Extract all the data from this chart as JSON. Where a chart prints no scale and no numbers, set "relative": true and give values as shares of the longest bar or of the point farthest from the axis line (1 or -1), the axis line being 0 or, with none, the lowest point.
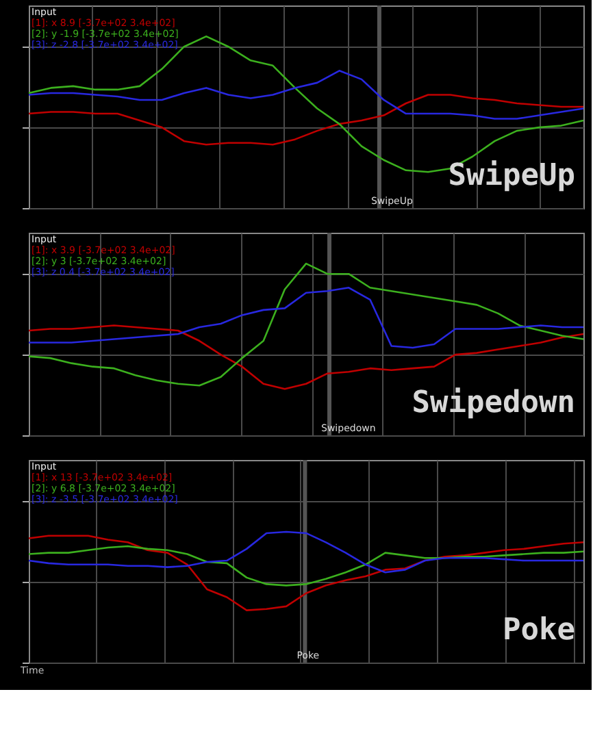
{
  "chart_data": [
    {
      "type": "line",
      "title": "Input",
      "relative": true,
      "tick_labels": false,
      "grid": true,
      "legend": "top left",
      "categories": [
        null,
        null,
        null,
        null,
        null,
        null,
        null,
        null,
        null,
        null,
        null,
        null,
        null,
        null,
        null,
        null,
        null,
        null,
        null,
        null,
        null,
        null,
        null,
        null,
        null,
        null
      ],
      "series": [
        {
          "name": "[1]: x 8.9 [-3.7e+02 3.4e+02]",
          "color": "#c00000",
          "values": [
            0.55,
            0.56,
            0.56,
            0.55,
            0.55,
            0.51,
            0.47,
            0.39,
            0.37,
            0.38,
            0.38,
            0.37,
            0.4,
            0.45,
            0.49,
            0.51,
            0.54,
            0.61,
            0.66,
            0.66,
            0.64,
            0.63,
            0.61,
            0.6,
            0.59,
            0.59
          ]
        },
        {
          "name": "[2]: y -1.9 [-3.7e+02 3.4e+02]",
          "color": "#3cb01e",
          "values": [
            0.67,
            0.7,
            0.71,
            0.69,
            0.69,
            0.71,
            0.81,
            0.94,
            1,
            0.94,
            0.86,
            0.83,
            0.7,
            0.58,
            0.49,
            0.36,
            0.28,
            0.22,
            0.21,
            0.23,
            0.3,
            0.39,
            0.45,
            0.47,
            0.48,
            0.51
          ]
        },
        {
          "name": "[3]: z -2.8 [-3.7e+02 3.4e+02]",
          "color": "#2828e0",
          "values": [
            0.66,
            0.67,
            0.67,
            0.66,
            0.65,
            0.63,
            0.63,
            0.67,
            0.7,
            0.66,
            0.64,
            0.66,
            0.7,
            0.73,
            0.8,
            0.75,
            0.63,
            0.55,
            0.55,
            0.55,
            0.54,
            0.52,
            0.52,
            0.54,
            0.56,
            0.58
          ]
        }
      ],
      "annotations": [
        "SwipeUp",
        "SwipeUp"
      ]
    },
    {
      "type": "line",
      "title": "Input",
      "relative": true,
      "tick_labels": false,
      "grid": true,
      "legend": "top left",
      "categories": [
        null,
        null,
        null,
        null,
        null,
        null,
        null,
        null,
        null,
        null,
        null,
        null,
        null,
        null,
        null,
        null,
        null,
        null,
        null,
        null,
        null,
        null,
        null,
        null,
        null,
        null,
        null
      ],
      "series": [
        {
          "name": "[1]: x 3.9 [-3.7e+02 3.4e+02]",
          "color": "#c00000",
          "values": [
            0.61,
            0.62,
            0.62,
            0.63,
            0.64,
            0.63,
            0.62,
            0.61,
            0.55,
            0.47,
            0.4,
            0.3,
            0.27,
            0.3,
            0.36,
            0.37,
            0.39,
            0.38,
            0.39,
            0.4,
            0.47,
            0.48,
            0.5,
            0.52,
            0.54,
            0.57,
            0.59
          ]
        },
        {
          "name": "[2]: y 3 [-3.7e+02 3.4e+02]",
          "color": "#3cb01e",
          "values": [
            0.46,
            0.45,
            0.42,
            0.4,
            0.39,
            0.35,
            0.32,
            0.3,
            0.29,
            0.34,
            0.45,
            0.55,
            0.85,
            1,
            0.94,
            0.94,
            0.86,
            0.84,
            0.82,
            0.8,
            0.78,
            0.76,
            0.71,
            0.64,
            0.61,
            0.58,
            0.56
          ]
        },
        {
          "name": "[3]: z 0.4 [-3.7e+02 3.4e+02]",
          "color": "#2828e0",
          "values": [
            0.54,
            0.54,
            0.54,
            0.55,
            0.56,
            0.57,
            0.58,
            0.59,
            0.63,
            0.65,
            0.7,
            0.73,
            0.74,
            0.83,
            0.84,
            0.86,
            0.79,
            0.52,
            0.51,
            0.53,
            0.62,
            0.62,
            0.62,
            0.63,
            0.64,
            0.63,
            0.63
          ]
        }
      ],
      "annotations": [
        "Swipedown",
        "Swipedown"
      ]
    },
    {
      "type": "line",
      "title": "Input",
      "xlabel": "Time",
      "relative": true,
      "tick_labels": false,
      "grid": true,
      "legend": "top left",
      "categories": [
        null,
        null,
        null,
        null,
        null,
        null,
        null,
        null,
        null,
        null,
        null,
        null,
        null,
        null,
        null,
        null,
        null,
        null,
        null,
        null,
        null,
        null,
        null,
        null,
        null,
        null,
        null,
        null,
        null
      ],
      "series": [
        {
          "name": "[1]: x 13 [-3.7e+02 3.4e+02]",
          "color": "#c00000",
          "values": [
            0.95,
            0.97,
            0.97,
            0.97,
            0.94,
            0.92,
            0.86,
            0.84,
            0.75,
            0.56,
            0.5,
            0.4,
            0.41,
            0.43,
            0.53,
            0.59,
            0.63,
            0.66,
            0.71,
            0.72,
            0.78,
            0.81,
            0.82,
            0.84,
            0.86,
            0.87,
            0.89,
            0.91,
            0.92
          ]
        },
        {
          "name": "[2]: y 6.8 [-3.7e+02 3.4e+02]",
          "color": "#3cb01e",
          "values": [
            0.83,
            0.84,
            0.84,
            0.86,
            0.88,
            0.89,
            0.87,
            0.86,
            0.83,
            0.77,
            0.76,
            0.65,
            0.6,
            0.59,
            0.6,
            0.64,
            0.69,
            0.75,
            0.84,
            0.82,
            0.8,
            0.8,
            0.81,
            0.81,
            0.82,
            0.83,
            0.84,
            0.84,
            0.85
          ]
        },
        {
          "name": "[3]: z -3.5 [-3.7e+02 3.4e+02]",
          "color": "#2828e0",
          "values": [
            0.78,
            0.76,
            0.75,
            0.75,
            0.75,
            0.74,
            0.74,
            0.73,
            0.74,
            0.77,
            0.78,
            0.87,
            0.99,
            1,
            0.99,
            0.92,
            0.84,
            0.75,
            0.69,
            0.71,
            0.78,
            0.8,
            0.8,
            0.8,
            0.79,
            0.78,
            0.78,
            0.78,
            0.78
          ]
        }
      ],
      "annotations": [
        "Poke",
        "Poke"
      ]
    }
  ]
}
